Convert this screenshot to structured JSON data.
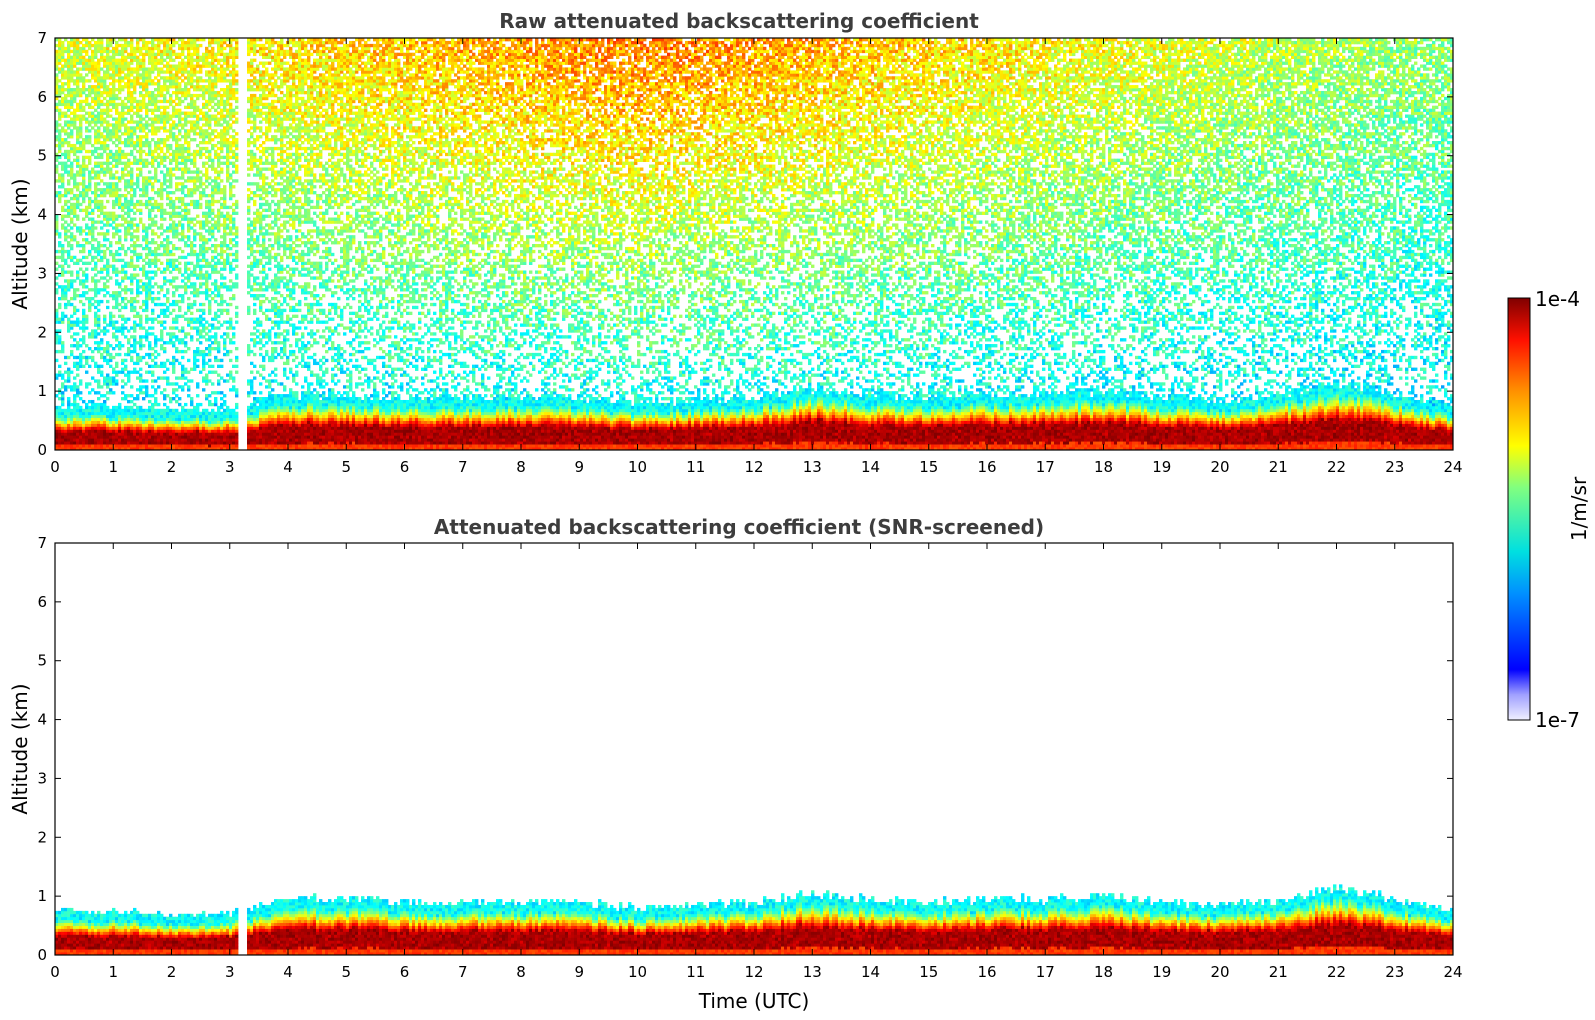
{
  "chart_data": [
    {
      "type": "heatmap",
      "title": "Raw attenuated backscattering coefficient",
      "xlabel": "",
      "ylabel": "Altitude (km)",
      "xlim": [
        0,
        24
      ],
      "ylim": [
        0,
        7
      ],
      "xticks": [
        0,
        1,
        2,
        3,
        4,
        5,
        6,
        7,
        8,
        9,
        10,
        11,
        12,
        13,
        14,
        15,
        16,
        17,
        18,
        19,
        20,
        21,
        22,
        23,
        24
      ],
      "yticks": [
        0,
        1,
        2,
        3,
        4,
        5,
        6,
        7
      ],
      "data_gap_hours": [
        3.15,
        3.28
      ],
      "boundary_layer": {
        "time_utc": [
          0,
          1,
          2,
          3,
          4,
          5,
          6,
          7,
          8,
          9,
          10,
          11,
          12,
          13,
          14,
          15,
          16,
          17,
          18,
          19,
          20,
          21,
          22,
          23,
          24
        ],
        "top_km": [
          0.6,
          0.6,
          0.55,
          0.55,
          0.8,
          0.8,
          0.75,
          0.75,
          0.75,
          0.75,
          0.65,
          0.7,
          0.75,
          0.9,
          0.8,
          0.75,
          0.8,
          0.8,
          0.85,
          0.75,
          0.7,
          0.8,
          1.0,
          0.8,
          0.6
        ]
      },
      "noise_visible": true
    },
    {
      "type": "heatmap",
      "title": "Attenuated backscattering coefficient (SNR-screened)",
      "xlabel": "Time (UTC)",
      "ylabel": "Altitude (km)",
      "xlim": [
        0,
        24
      ],
      "ylim": [
        0,
        7
      ],
      "xticks": [
        0,
        1,
        2,
        3,
        4,
        5,
        6,
        7,
        8,
        9,
        10,
        11,
        12,
        13,
        14,
        15,
        16,
        17,
        18,
        19,
        20,
        21,
        22,
        23,
        24
      ],
      "yticks": [
        0,
        1,
        2,
        3,
        4,
        5,
        6,
        7
      ],
      "data_gap_hours": [
        3.15,
        3.28
      ],
      "boundary_layer": {
        "time_utc": [
          0,
          1,
          2,
          3,
          4,
          5,
          6,
          7,
          8,
          9,
          10,
          11,
          12,
          13,
          14,
          15,
          16,
          17,
          18,
          19,
          20,
          21,
          22,
          23,
          24
        ],
        "top_km": [
          0.6,
          0.6,
          0.55,
          0.55,
          0.8,
          0.8,
          0.75,
          0.75,
          0.75,
          0.75,
          0.65,
          0.7,
          0.75,
          0.9,
          0.8,
          0.75,
          0.8,
          0.8,
          0.85,
          0.75,
          0.7,
          0.8,
          1.0,
          0.8,
          0.6
        ]
      },
      "noise_visible": false
    }
  ],
  "colorbar": {
    "label": "1/m/sr",
    "min_label": "1e-7",
    "max_label": "1e-4",
    "colormap": "jet",
    "scale": "log"
  }
}
